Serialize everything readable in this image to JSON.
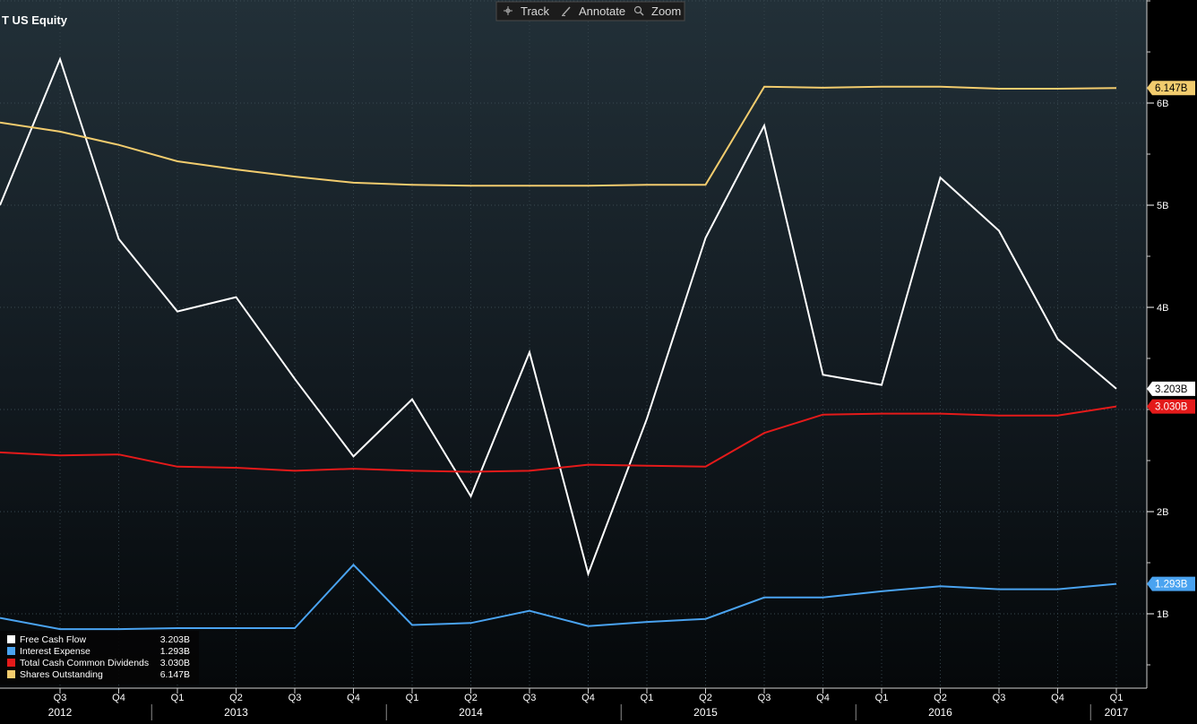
{
  "header": {
    "title": "T US Equity"
  },
  "toolbar": {
    "items": [
      {
        "label": "Track",
        "icon": "crosshair-icon"
      },
      {
        "label": "Annotate",
        "icon": "pencil-icon"
      },
      {
        "label": "Zoom",
        "icon": "magnifier-icon"
      }
    ]
  },
  "chart_data": {
    "type": "line",
    "x_axis": {
      "quarters": [
        "Q3",
        "Q4",
        "Q1",
        "Q2",
        "Q3",
        "Q4",
        "Q1",
        "Q2",
        "Q3",
        "Q4",
        "Q1",
        "Q2",
        "Q3",
        "Q4",
        "Q1",
        "Q2",
        "Q3",
        "Q4",
        "Q1"
      ],
      "years": [
        {
          "label": "2012",
          "quarter_index": 0
        },
        {
          "label": "2013",
          "quarter_index": 3
        },
        {
          "label": "2014",
          "quarter_index": 7
        },
        {
          "label": "2015",
          "quarter_index": 11
        },
        {
          "label": "2016",
          "quarter_index": 15
        },
        {
          "label": "2017",
          "quarter_index": 18
        }
      ]
    },
    "y_axis": {
      "ticks": [
        {
          "value": 1,
          "label": "1B"
        },
        {
          "value": 2,
          "label": "2B"
        },
        {
          "value": 4,
          "label": "4B"
        },
        {
          "value": 5,
          "label": "5B"
        },
        {
          "value": 6,
          "label": "6B"
        }
      ],
      "ylim": [
        0.15,
        7.5
      ],
      "unit": "B",
      "position": "right"
    },
    "grid": true,
    "legend_position": "bottom-left",
    "series": [
      {
        "name": "Free Cash Flow",
        "color": "#ffffff",
        "last_value_label": "3.203B",
        "start_value": 5.0,
        "values": [
          6.43,
          4.67,
          3.96,
          4.1,
          3.3,
          2.54,
          3.1,
          2.15,
          3.56,
          1.39,
          2.91,
          4.68,
          5.78,
          3.34,
          3.24,
          5.27,
          4.75,
          3.69,
          3.203
        ]
      },
      {
        "name": "Interest Expense",
        "color": "#4aa3f0",
        "last_value_label": "1.293B",
        "start_value": 0.96,
        "values": [
          0.85,
          0.85,
          0.86,
          0.86,
          0.86,
          1.48,
          0.89,
          0.91,
          1.03,
          0.88,
          0.92,
          0.95,
          1.16,
          1.16,
          1.22,
          1.27,
          1.24,
          1.24,
          1.293
        ]
      },
      {
        "name": "Total Cash Common Dividends",
        "color": "#e41a1a",
        "last_value_label": "3.030B",
        "start_value": 2.58,
        "values": [
          2.55,
          2.56,
          2.44,
          2.43,
          2.4,
          2.42,
          2.4,
          2.39,
          2.4,
          2.46,
          2.45,
          2.44,
          2.77,
          2.95,
          2.96,
          2.96,
          2.94,
          2.94,
          3.03
        ]
      },
      {
        "name": "Shares Outstanding",
        "color": "#f2cc6e",
        "last_value_label": "6.147B",
        "start_value": 5.81,
        "values": [
          5.72,
          5.59,
          5.43,
          5.35,
          5.28,
          5.22,
          5.2,
          5.19,
          5.19,
          5.19,
          5.2,
          5.2,
          6.16,
          6.15,
          6.16,
          6.16,
          6.14,
          6.14,
          6.147
        ]
      }
    ]
  }
}
